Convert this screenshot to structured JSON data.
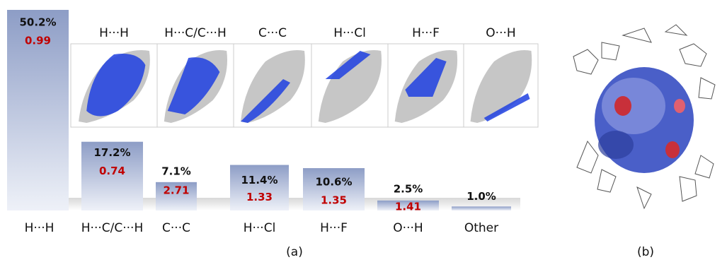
{
  "chart_data": {
    "type": "bar",
    "categories": [
      "H···H",
      "H···C/C···H",
      "C···C",
      "H···Cl",
      "H···F",
      "O···H",
      "Other"
    ],
    "values": [
      50.2,
      17.2,
      7.1,
      11.4,
      10.6,
      2.5,
      1.0
    ],
    "value_labels": [
      "50.2%",
      "17.2%",
      "7.1%",
      "11.4%",
      "10.6%",
      "2.5%",
      "1.0%"
    ],
    "enrichment": [
      0.99,
      0.74,
      2.71,
      1.33,
      1.35,
      1.41,
      null
    ],
    "fingerprint_titles": [
      "H···H",
      "H···C/C···H",
      "C···C",
      "H···Cl",
      "H···F",
      "O···H"
    ],
    "panel_labels": [
      "(a)",
      "(b)"
    ],
    "color": "#8d9dc6"
  }
}
